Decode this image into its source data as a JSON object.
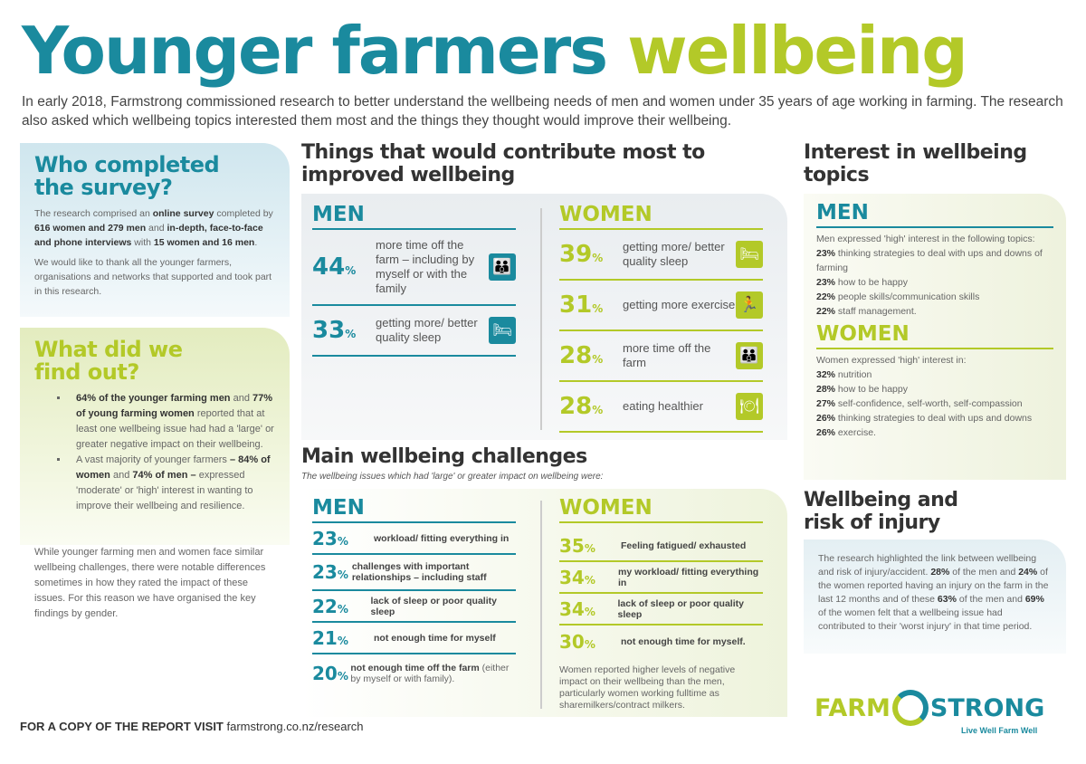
{
  "title": {
    "part1": "Younger farmers",
    "part2": "wellbeing"
  },
  "intro": "In early 2018, Farmstrong commissioned research to better understand the wellbeing needs of men and women under 35 years of age working in farming. The research also asked which wellbeing topics interested them most and the things they thought would improve their wellbeing.",
  "colors": {
    "teal": "#1a8a9e",
    "lime": "#b3c928"
  },
  "who": {
    "heading": "Who completed the survey?",
    "p1": [
      {
        "t": "The research comprised an "
      },
      {
        "b": "online survey"
      },
      {
        "t": " completed by "
      },
      {
        "b": "616 women and 279 men"
      },
      {
        "t": " and "
      },
      {
        "b": "in-depth, face-to-face and phone interviews"
      },
      {
        "t": " with "
      },
      {
        "b": "15 women and 16 men"
      },
      {
        "t": "."
      }
    ],
    "p2": "We would like to thank all the younger farmers, organisations and networks that supported and took part in this research."
  },
  "findings": {
    "heading": "What did we find out?",
    "b1": [
      {
        "b": "64% of the younger farming men"
      },
      {
        "t": " and "
      },
      {
        "b": "77% of young farming women"
      },
      {
        "t": " reported that at least one wellbeing issue had had a 'large' or greater negative impact on their wellbeing."
      }
    ],
    "b2": [
      {
        "t": "A vast majority of younger farmers "
      },
      {
        "b": "– 84% of women"
      },
      {
        "t": " and "
      },
      {
        "b": "74% of men –"
      },
      {
        "t": " expressed 'moderate' or 'high' interest in wanting to improve their wellbeing and resilience."
      }
    ],
    "p": "While younger farming men and women face similar wellbeing challenges, there were notable differences sometimes in how they rated the impact of these issues. For this reason we have organised the key findings by gender."
  },
  "contribute": {
    "heading": "Things that would contribute most to improved wellbeing",
    "men_label": "MEN",
    "women_label": "WOMEN",
    "men": [
      {
        "pct": "44",
        "text": "more time off the farm – including by myself or with the family",
        "icon": "people-icon"
      },
      {
        "pct": "33",
        "text": "getting more/ better quality sleep",
        "icon": "bed-icon"
      }
    ],
    "women": [
      {
        "pct": "39",
        "text": "getting more/ better quality sleep",
        "icon": "bed-icon"
      },
      {
        "pct": "31",
        "text": "getting more exercise",
        "icon": "running-icon"
      },
      {
        "pct": "28",
        "text": "more time off the farm",
        "icon": "people-icon"
      },
      {
        "pct": "28",
        "text": "eating healthier",
        "icon": "food-icon"
      }
    ]
  },
  "challenges": {
    "heading": "Main wellbeing challenges",
    "subtitle": "The wellbeing issues which had 'large' or greater impact on wellbeing were:",
    "men_label": "MEN",
    "women_label": "WOMEN",
    "men": [
      {
        "pct": "23",
        "text": "workload/ fitting everything in"
      },
      {
        "pct": "23",
        "text": "challenges with important relationships – including staff"
      },
      {
        "pct": "22",
        "text": "lack of sleep or poor quality sleep"
      },
      {
        "pct": "21",
        "text": "not enough time for myself"
      },
      {
        "pct": "20",
        "text": "not enough time off the farm",
        "extra": " (either by myself or with family)."
      }
    ],
    "women": [
      {
        "pct": "35",
        "text": "Feeling fatigued/ exhausted"
      },
      {
        "pct": "34",
        "text": "my workload/ fitting everything in"
      },
      {
        "pct": "34",
        "text": "lack of sleep or poor quality sleep"
      },
      {
        "pct": "30",
        "text": "not enough time for myself."
      }
    ],
    "women_note": "Women reported higher levels of negative impact on their wellbeing than the men, particularly women working fulltime as sharemilkers/contract milkers."
  },
  "interest": {
    "heading": "Interest in wellbeing topics",
    "men_label": "MEN",
    "women_label": "WOMEN",
    "men_intro": "Men expressed 'high' interest in the following topics:",
    "men": [
      {
        "pct": "23%",
        "text": " thinking strategies to deal with ups and downs of farming"
      },
      {
        "pct": "23%",
        "text": " how to be happy"
      },
      {
        "pct": "22%",
        "text": " people skills/communication skills"
      },
      {
        "pct": "22%",
        "text": " staff management."
      }
    ],
    "women_intro": "Women expressed 'high' interest in:",
    "women": [
      {
        "pct": "32%",
        "text": " nutrition"
      },
      {
        "pct": "28%",
        "text": " how to be happy"
      },
      {
        "pct": "27%",
        "text": " self-confidence, self-worth, self-compassion"
      },
      {
        "pct": "26%",
        "text": " thinking strategies to deal with ups and downs"
      },
      {
        "pct": "26%",
        "text": " exercise."
      }
    ]
  },
  "injury": {
    "heading": "Wellbeing and risk of injury",
    "p": [
      {
        "t": "The research highlighted the link between wellbeing and risk of injury/accident. "
      },
      {
        "b": "28%"
      },
      {
        "t": " of the men and "
      },
      {
        "b": "24%"
      },
      {
        "t": " of the women reported having an injury on the farm in the last 12 months and of these "
      },
      {
        "b": "63%"
      },
      {
        "t": " of the men and "
      },
      {
        "b": "69%"
      },
      {
        "t": " of the women felt that a wellbeing issue had contributed to their 'worst injury' in that time period."
      }
    ]
  },
  "footer": {
    "label": "FOR A COPY OF THE REPORT VISIT",
    "link": "farmstrong.co.nz/research"
  },
  "logo": {
    "farm": "FARM",
    "strong": "STRONG",
    "tagline": "Live Well Farm Well"
  }
}
